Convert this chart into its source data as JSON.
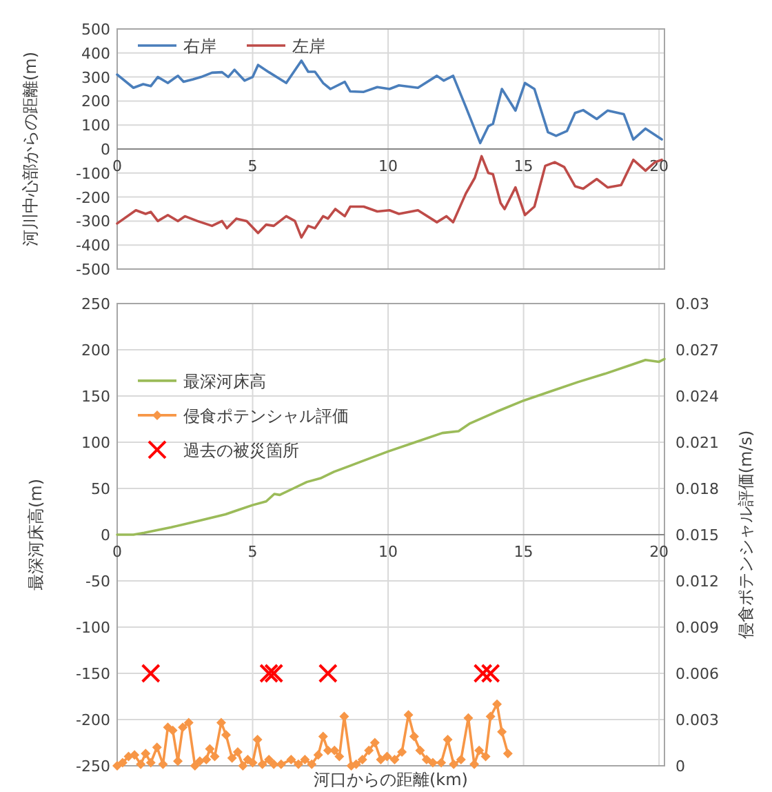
{
  "chart_data": [
    {
      "type": "line",
      "ylabel": "河川中心部からの距離(m)",
      "xlim": [
        0,
        20.2
      ],
      "ylim": [
        -500,
        500
      ],
      "xticks": [
        0,
        5,
        10,
        15,
        20
      ],
      "yticks": [
        -500,
        -400,
        -300,
        -200,
        -100,
        0,
        100,
        200,
        300,
        400,
        500
      ],
      "grid": true,
      "legend": "top left",
      "marker": "none",
      "series": [
        {
          "name": "右岸",
          "color": "#4a7ebb",
          "x": [
            0,
            0.6,
            0.96,
            1.24,
            1.5,
            1.87,
            2.24,
            2.45,
            2.8,
            3.1,
            3.5,
            3.87,
            4.1,
            4.33,
            4.7,
            5.0,
            5.2,
            5.6,
            6.24,
            6.8,
            7.05,
            7.3,
            7.6,
            7.87,
            8.4,
            8.6,
            9.1,
            9.6,
            10.05,
            10.4,
            11.1,
            11.8,
            12.05,
            12.4,
            12.87,
            13.4,
            13.7,
            13.87,
            14.2,
            14.7,
            15.05,
            15.4,
            15.9,
            16.2,
            16.6,
            16.9,
            17.2,
            17.7,
            18.1,
            18.7,
            19.05,
            19.5,
            20.1
          ],
          "values": [
            310,
            255,
            270,
            262,
            300,
            275,
            305,
            280,
            290,
            300,
            318,
            320,
            300,
            330,
            285,
            300,
            350,
            320,
            275,
            368,
            322,
            322,
            275,
            250,
            280,
            240,
            238,
            258,
            250,
            265,
            255,
            305,
            285,
            305,
            175,
            25,
            95,
            105,
            250,
            160,
            275,
            250,
            70,
            55,
            75,
            150,
            162,
            125,
            160,
            145,
            40,
            85,
            40
          ]
        },
        {
          "name": "左岸",
          "color": "#be4b48",
          "x": [
            0,
            0.69,
            1.05,
            1.24,
            1.5,
            1.87,
            2.24,
            2.5,
            2.96,
            3.5,
            3.87,
            4.05,
            4.4,
            4.78,
            5.2,
            5.5,
            5.78,
            6.24,
            6.56,
            6.8,
            7.05,
            7.3,
            7.6,
            7.78,
            8.05,
            8.4,
            8.6,
            9.1,
            9.6,
            10.05,
            10.4,
            11.1,
            11.8,
            12.15,
            12.4,
            12.87,
            13.2,
            13.45,
            13.7,
            13.87,
            14.15,
            14.3,
            14.7,
            15.05,
            15.4,
            15.8,
            16.15,
            16.5,
            16.9,
            17.2,
            17.7,
            18.1,
            18.6,
            19.05,
            19.5,
            19.85,
            20.1
          ],
          "values": [
            -310,
            -255,
            -270,
            -262,
            -300,
            -275,
            -300,
            -280,
            -300,
            -320,
            -300,
            -330,
            -290,
            -300,
            -350,
            -315,
            -320,
            -280,
            -300,
            -368,
            -320,
            -330,
            -280,
            -290,
            -250,
            -280,
            -240,
            -240,
            -260,
            -255,
            -270,
            -255,
            -305,
            -280,
            -305,
            -185,
            -120,
            -30,
            -100,
            -105,
            -225,
            -250,
            -160,
            -275,
            -240,
            -70,
            -55,
            -75,
            -155,
            -165,
            -125,
            -160,
            -150,
            -45,
            -90,
            -55,
            -45
          ]
        }
      ]
    },
    {
      "type": "line",
      "xlabel": "河口からの距離(km)",
      "ylabel": "最深河床高(m)",
      "y2label": "侵食ポテンシャル評価(m/s)",
      "xlim": [
        0,
        20.2
      ],
      "ylim": [
        -250,
        250
      ],
      "y2lim": [
        0,
        0.03
      ],
      "xticks": [
        0,
        5,
        10,
        15,
        20
      ],
      "yticks": [
        -250,
        -200,
        -150,
        -100,
        -50,
        0,
        50,
        100,
        150,
        200,
        250
      ],
      "y2ticks": [
        0,
        0.003,
        0.006,
        0.009,
        0.012,
        0.015,
        0.018,
        0.021,
        0.024,
        0.027,
        0.03
      ],
      "grid": true,
      "legend": "top left",
      "series": [
        {
          "name": "最深河床高",
          "color": "#9bbb59",
          "marker": "none",
          "x": [
            0,
            0.6,
            1,
            2,
            3,
            4,
            4.5,
            5,
            5.5,
            5.8,
            6,
            6.5,
            7,
            7.5,
            8,
            9,
            10,
            11,
            12,
            12.6,
            13,
            14,
            15,
            15.5,
            16,
            17,
            18,
            19,
            19.5,
            20,
            20.2
          ],
          "values": [
            0,
            0,
            2,
            8,
            15,
            22,
            27,
            32,
            36,
            44,
            43,
            50,
            57,
            61,
            68,
            79,
            90,
            100,
            110,
            112,
            120,
            133,
            145,
            150,
            155,
            165,
            174,
            184,
            189,
            187,
            190
          ]
        },
        {
          "name": "侵食ポテンシャル評価",
          "color": "#f79646",
          "axis": "y2",
          "marker": "diamond",
          "x": [
            0,
            0.2,
            0.42,
            0.64,
            0.87,
            1.05,
            1.24,
            1.47,
            1.69,
            1.87,
            2.05,
            2.24,
            2.42,
            2.64,
            2.87,
            3.05,
            3.29,
            3.42,
            3.6,
            3.84,
            4.02,
            4.24,
            4.45,
            4.64,
            4.82,
            5.0,
            5.18,
            5.36,
            5.6,
            5.78,
            6.05,
            6.42,
            6.69,
            6.93,
            7.18,
            7.42,
            7.6,
            7.78,
            8.02,
            8.2,
            8.38,
            8.64,
            8.82,
            9.05,
            9.29,
            9.51,
            9.73,
            9.96,
            10.24,
            10.51,
            10.75,
            10.96,
            11.18,
            11.42,
            11.65,
            11.96,
            12.2,
            12.42,
            12.69,
            12.96,
            13.18,
            13.36,
            13.6,
            13.78,
            14.02,
            14.2,
            14.42
          ],
          "values": [
            0,
            0.0002,
            0.0006,
            0.0007,
            0.0001,
            0.0008,
            0.0002,
            0.0012,
            0.0001,
            0.0025,
            0.0023,
            0.0003,
            0.0025,
            0.0028,
            0,
            0.0003,
            0.0004,
            0.0011,
            0.0006,
            0.0028,
            0.002,
            0.0005,
            0.0009,
            0,
            0.0004,
            0.0002,
            0.0017,
            0.0001,
            0.0004,
            0.0001,
            0.0001,
            0.0004,
            0.0001,
            0.0004,
            0.0001,
            0.0007,
            0.0019,
            0.001,
            0.001,
            0.0006,
            0.0032,
            0,
            0.0001,
            0.0004,
            0.001,
            0.0015,
            0.0004,
            0.0006,
            0.0004,
            0.0009,
            0.0033,
            0.0019,
            0.001,
            0.0004,
            0.0002,
            0.0002,
            0.0017,
            0.0001,
            0.0004,
            0.0031,
            0.0001,
            0.001,
            0.0006,
            0.0032,
            0.004,
            0.0022,
            0.0008
          ]
        },
        {
          "name": "過去の被災箇所",
          "color": "#ff0000",
          "type": "scatter",
          "marker": "cross",
          "x": [
            1.24,
            5.6,
            5.78,
            7.78,
            13.5,
            13.78
          ],
          "values": [
            -150,
            -150,
            -150,
            -150,
            -150,
            -150
          ]
        }
      ]
    }
  ]
}
